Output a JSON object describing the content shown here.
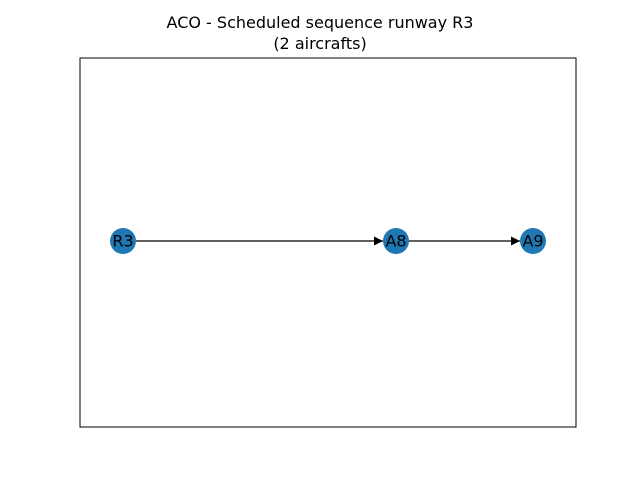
{
  "title": {
    "line1": "ACO - Scheduled sequence runway R3",
    "line2": "(2 aircrafts)"
  },
  "colors": {
    "node_fill": "#1f77b4",
    "edge": "#000000",
    "frame": "#000000",
    "label": "#000000"
  },
  "graph": {
    "nodes": [
      {
        "id": "R3",
        "label": "R3"
      },
      {
        "id": "A8",
        "label": "A8"
      },
      {
        "id": "A9",
        "label": "A9"
      }
    ],
    "edges": [
      {
        "source": "R3",
        "target": "A8"
      },
      {
        "source": "A8",
        "target": "A9"
      }
    ]
  }
}
